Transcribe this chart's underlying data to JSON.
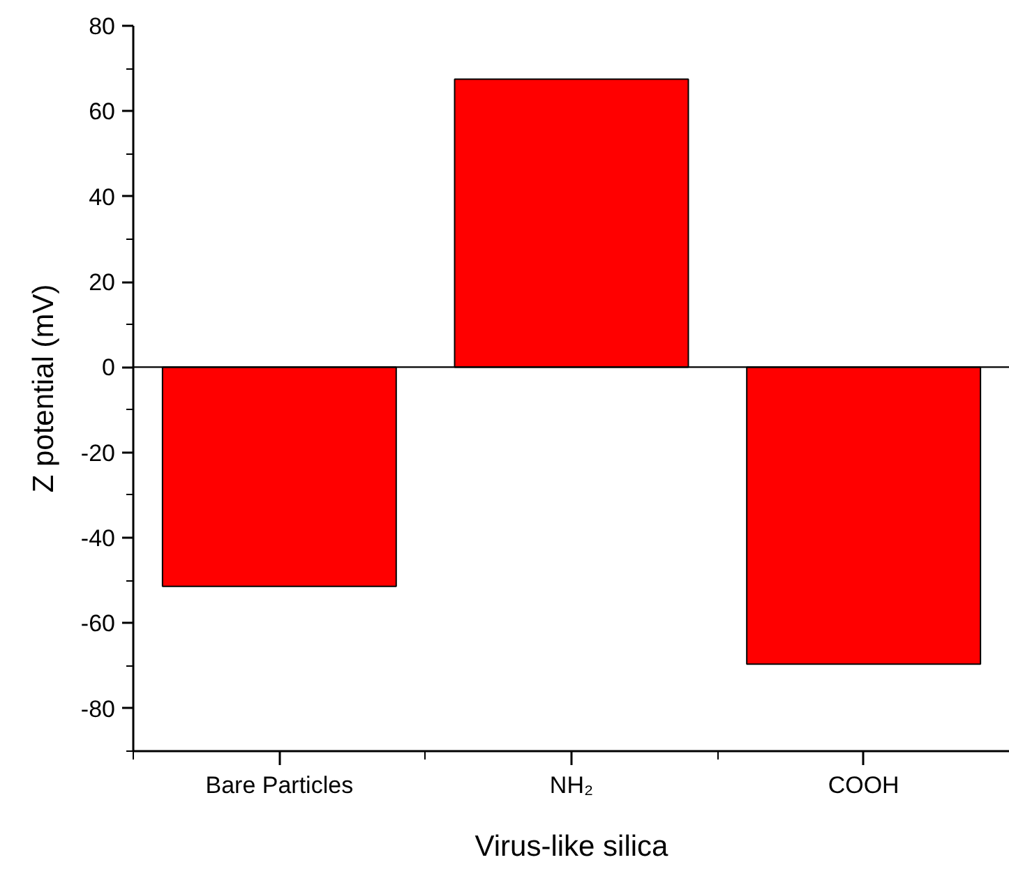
{
  "chart_data": {
    "type": "bar",
    "xlabel": "Virus-like silica",
    "ylabel": "Z potential (mV)",
    "categories": [
      "Bare Particles",
      "NH₂",
      "COOH"
    ],
    "values": [
      -51.4,
      67.5,
      -69.6
    ],
    "color": "#ff0000",
    "ylim": [
      -90,
      80
    ],
    "yticks": [
      -80,
      -60,
      -40,
      -20,
      0,
      20,
      40,
      60,
      80
    ],
    "ref_lines": [
      {
        "axis": "y",
        "value": 0
      }
    ],
    "grid": false
  }
}
